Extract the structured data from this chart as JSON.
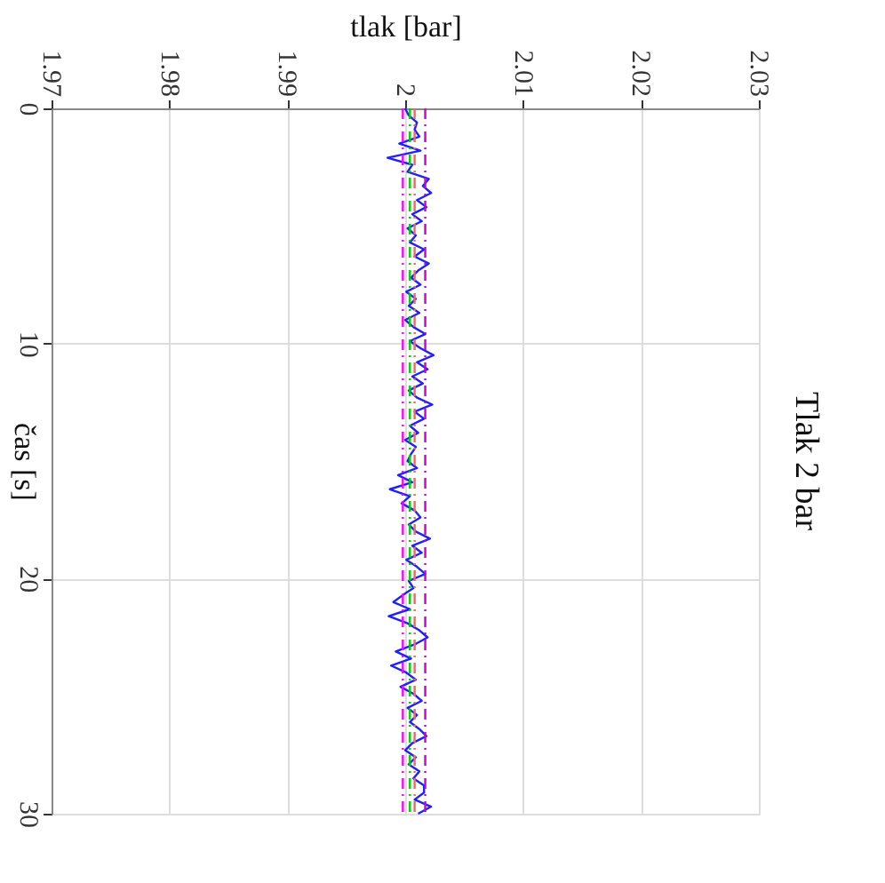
{
  "chart_data": {
    "type": "line",
    "title": "Tlak 2 bar",
    "xlabel": "tlak [bar]",
    "ylabel": "čas [s]",
    "ylim": [
      30,
      0
    ],
    "yticks": [
      0,
      10,
      20,
      30
    ],
    "xlim": [
      1.97,
      2.03
    ],
    "xticks": [
      1.97,
      1.98,
      1.99,
      2,
      2.01,
      2.02,
      2.03
    ],
    "grid": true,
    "series": [
      {
        "color": "#2020ff",
        "values": [
          0,
          0.3,
          0.6,
          0.9,
          1.2,
          1.5,
          1.8,
          2.1,
          2.4,
          2.7,
          3,
          3.3,
          3.6,
          3.9,
          4.2,
          4.5,
          4.8,
          5.1,
          5.4,
          5.7,
          6,
          6.3,
          6.6,
          6.9,
          7.2,
          7.5,
          7.8,
          8.1,
          8.4,
          8.7,
          9,
          9.3,
          9.6,
          9.9,
          10.2,
          10.5,
          10.8,
          11.1,
          11.4,
          11.7,
          12,
          12.3,
          12.6,
          12.9,
          13.2,
          13.5,
          13.8,
          14.1,
          14.4,
          14.7,
          15,
          15.3,
          15.6,
          15.9,
          16.2,
          16.5,
          16.8,
          17.1,
          17.4,
          17.7,
          18,
          18.3,
          18.6,
          18.9,
          19.2,
          19.5,
          19.8,
          20.1,
          20.4,
          20.7,
          21,
          21.3,
          21.6,
          21.9,
          22.2,
          22.5,
          22.8,
          23.1,
          23.4,
          23.7,
          24,
          24.3,
          24.6,
          24.9,
          25.2,
          25.5,
          25.8,
          26.1,
          26.4,
          26.7,
          27,
          27.3,
          27.6,
          27.9,
          28.2,
          28.5,
          28.8,
          29.1,
          29.4,
          29.7,
          30
        ],
        "x": [
          2.0,
          2.0003,
          2.001,
          2.0008,
          2.0012,
          1.9995,
          2.0013,
          1.9985,
          2.0006,
          2.0002,
          2.002,
          2.0015,
          2.0022,
          2.001,
          2.0018,
          2.0006,
          2.0014,
          2.0002,
          2.0009,
          2.0004,
          2.0016,
          2.0008,
          2.002,
          2.0011,
          2.0005,
          2.0013,
          2.0001,
          2.0009,
          2.0003,
          2.0012,
          2.0,
          2.0007,
          2.0017,
          2.0004,
          2.0013,
          2.0024,
          2.001,
          2.0019,
          2.0006,
          2.0015,
          2.0003,
          2.001,
          2.0023,
          2.0008,
          2.0016,
          2.0004,
          2.0011,
          2.0,
          2.0009,
          2.0005,
          2.0002,
          2.001,
          1.9994,
          2.0006,
          1.9987,
          2.0004,
          1.9997,
          2.0008,
          2.0013,
          2.0003,
          2.0009,
          2.0021,
          2.0006,
          2.0014,
          2.0001,
          2.001,
          2.0017,
          2.0003,
          2.0007,
          1.9998,
          1.999,
          2.0004,
          1.9986,
          2.0002,
          2.0012,
          2.0019,
          2.0008,
          1.9992,
          2.0005,
          1.9988,
          2.0001,
          2.0009,
          1.9996,
          2.0007,
          2.0014,
          2.0002,
          2.001,
          2.0004,
          2.0012,
          2.0018,
          2.0006,
          2.0,
          2.0009,
          2.0003,
          2.0012,
          2.0007,
          2.0016,
          2.0016,
          2.0008,
          2.0022,
          2.0011
        ]
      }
    ],
    "ref_lines": [
      {
        "axis": "x",
        "value": 1.9998,
        "color": "#ff00ff",
        "line_style": "dashed"
      },
      {
        "axis": "x",
        "value": 2.0004,
        "color": "#00cc00",
        "line_style": "dashed"
      },
      {
        "axis": "x",
        "value": 2.0008,
        "color": "#ff6060",
        "line_style": "dashed"
      },
      {
        "axis": "x",
        "value": 2.0017,
        "color": "#cc00cc",
        "line_style": "dashed"
      }
    ]
  }
}
